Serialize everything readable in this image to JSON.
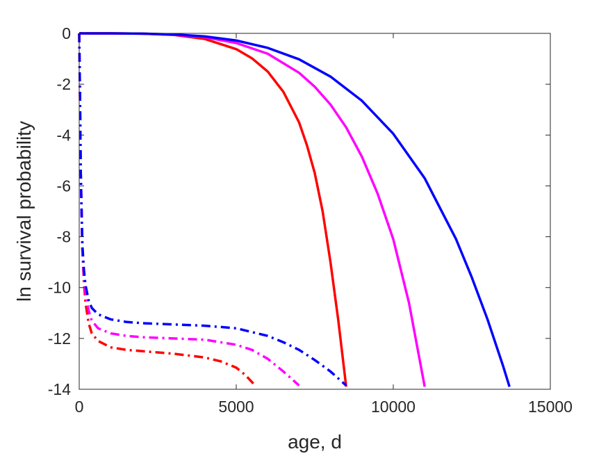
{
  "chart_data": {
    "type": "line",
    "title": "",
    "xlabel": "age, d",
    "ylabel": "ln survival probability",
    "xlim": [
      0,
      15000
    ],
    "ylim": [
      -14,
      0
    ],
    "xticks": [
      0,
      5000,
      10000,
      15000
    ],
    "xtick_labels": [
      "0",
      "5000",
      "10000",
      "15000"
    ],
    "yticks": [
      0,
      -2,
      -4,
      -6,
      -8,
      -10,
      -12,
      -14
    ],
    "ytick_labels": [
      "0",
      "-2",
      "-4",
      "-6",
      "-8",
      "-10",
      "-12",
      "-14"
    ],
    "grid": false,
    "legend": "none",
    "series": [
      {
        "color": "#ff0000",
        "style": "solid",
        "x": [
          0,
          1000,
          2000,
          3000,
          4000,
          5000,
          5500,
          6000,
          6500,
          7000,
          7250,
          7500,
          7750,
          8000,
          8250,
          8500
        ],
        "y": [
          0,
          0,
          -0.01,
          -0.06,
          -0.22,
          -0.62,
          -0.98,
          -1.5,
          -2.3,
          -3.5,
          -4.4,
          -5.5,
          -7.0,
          -9.0,
          -11.3,
          -13.9
        ]
      },
      {
        "color": "#ff00ff",
        "style": "solid",
        "x": [
          0,
          1000,
          2000,
          3000,
          4000,
          5000,
          6000,
          7000,
          7500,
          8000,
          8500,
          9000,
          9500,
          10000,
          10500,
          11000
        ],
        "y": [
          0,
          0,
          -0.01,
          -0.05,
          -0.15,
          -0.38,
          -0.8,
          -1.55,
          -2.1,
          -2.8,
          -3.7,
          -4.85,
          -6.3,
          -8.1,
          -10.6,
          -13.9
        ]
      },
      {
        "color": "#0000ff",
        "style": "solid",
        "x": [
          0,
          1000,
          2000,
          3000,
          4000,
          5000,
          6000,
          7000,
          8000,
          9000,
          10000,
          11000,
          12000,
          12500,
          13000,
          13500,
          13700
        ],
        "y": [
          0,
          0,
          -0.01,
          -0.04,
          -0.12,
          -0.28,
          -0.57,
          -1.02,
          -1.7,
          -2.65,
          -3.95,
          -5.7,
          -8.1,
          -9.6,
          -11.25,
          -13.1,
          -13.9
        ]
      },
      {
        "color": "#ff0000",
        "style": "dashdot",
        "x": [
          0,
          25,
          50,
          100,
          150,
          200,
          300,
          400,
          600,
          1000,
          1500,
          2000,
          2500,
          3000,
          4000,
          4500,
          5000,
          5300,
          5600
        ],
        "y": [
          0,
          -2.5,
          -5.5,
          -8.5,
          -9.8,
          -10.6,
          -11.4,
          -11.8,
          -12.1,
          -12.35,
          -12.45,
          -12.5,
          -12.55,
          -12.6,
          -12.75,
          -12.9,
          -13.15,
          -13.45,
          -13.85
        ]
      },
      {
        "color": "#ff00ff",
        "style": "dashdot",
        "x": [
          0,
          25,
          50,
          100,
          150,
          200,
          300,
          400,
          600,
          1000,
          1500,
          2000,
          3000,
          4000,
          5000,
          5500,
          6000,
          6500,
          7000
        ],
        "y": [
          0,
          -2.5,
          -5.5,
          -8.5,
          -9.6,
          -10.2,
          -10.9,
          -11.3,
          -11.6,
          -11.8,
          -11.9,
          -11.95,
          -12.0,
          -12.05,
          -12.25,
          -12.45,
          -12.8,
          -13.3,
          -13.85
        ]
      },
      {
        "color": "#0000ff",
        "style": "dashdot",
        "x": [
          0,
          25,
          50,
          100,
          150,
          200,
          300,
          400,
          600,
          1000,
          1500,
          2000,
          3000,
          4000,
          5000,
          6000,
          6500,
          7000,
          7500,
          8000,
          8500
        ],
        "y": [
          0,
          -2.5,
          -5.5,
          -8.3,
          -9.3,
          -9.9,
          -10.5,
          -10.8,
          -11.05,
          -11.25,
          -11.35,
          -11.4,
          -11.45,
          -11.5,
          -11.6,
          -11.9,
          -12.15,
          -12.45,
          -12.85,
          -13.3,
          -13.85
        ]
      }
    ]
  }
}
